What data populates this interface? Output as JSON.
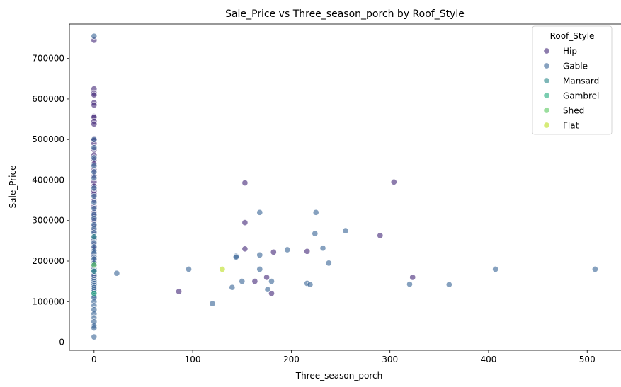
{
  "chart_data": {
    "type": "scatter",
    "title": "Sale_Price vs Three_season_porch by Roof_Style",
    "xlabel": "Three_season_porch",
    "ylabel": "Sale_Price",
    "xlim": [
      -25,
      535
    ],
    "ylim": [
      -20000,
      785000
    ],
    "xticks": [
      0,
      100,
      200,
      300,
      400,
      500
    ],
    "yticks": [
      0,
      100000,
      200000,
      300000,
      400000,
      500000,
      600000,
      700000
    ],
    "grid": false,
    "legend": {
      "title": "Roof_Style",
      "placement": "top-right"
    },
    "series": [
      {
        "name": "Hip",
        "color": "#472c7a",
        "points": [
          [
            0,
            745000
          ],
          [
            0,
            625000
          ],
          [
            0,
            615000
          ],
          [
            0,
            610000
          ],
          [
            0,
            591000
          ],
          [
            0,
            585000
          ],
          [
            0,
            557000
          ],
          [
            0,
            555000
          ],
          [
            0,
            545000
          ],
          [
            0,
            538000
          ],
          [
            0,
            502000
          ],
          [
            0,
            498000
          ],
          [
            0,
            490000
          ],
          [
            0,
            475000
          ],
          [
            0,
            462000
          ],
          [
            0,
            450000
          ],
          [
            0,
            440000
          ],
          [
            0,
            425000
          ],
          [
            0,
            410000
          ],
          [
            0,
            395000
          ],
          [
            0,
            385000
          ],
          [
            0,
            372000
          ],
          [
            0,
            365000
          ],
          [
            0,
            350000
          ],
          [
            0,
            335000
          ],
          [
            0,
            320000
          ],
          [
            0,
            310000
          ],
          [
            0,
            300000
          ],
          [
            0,
            285000
          ],
          [
            0,
            275000
          ],
          [
            0,
            260000
          ],
          [
            0,
            250000
          ],
          [
            0,
            240000
          ],
          [
            0,
            230000
          ],
          [
            0,
            215000
          ],
          [
            0,
            200000
          ],
          [
            0,
            185000
          ],
          [
            0,
            170000
          ],
          [
            0,
            160000
          ],
          [
            86,
            125000
          ],
          [
            153,
            393000
          ],
          [
            153,
            295000
          ],
          [
            153,
            230000
          ],
          [
            163,
            150000
          ],
          [
            175,
            160000
          ],
          [
            180,
            120000
          ],
          [
            182,
            222000
          ],
          [
            216,
            224000
          ],
          [
            290,
            263000
          ],
          [
            304,
            395000
          ],
          [
            323,
            160000
          ]
        ]
      },
      {
        "name": "Gable",
        "color": "#3b6797",
        "points": [
          [
            0,
            755000
          ],
          [
            0,
            500000
          ],
          [
            0,
            480000
          ],
          [
            0,
            455000
          ],
          [
            0,
            435000
          ],
          [
            0,
            420000
          ],
          [
            0,
            405000
          ],
          [
            0,
            380000
          ],
          [
            0,
            360000
          ],
          [
            0,
            345000
          ],
          [
            0,
            330000
          ],
          [
            0,
            315000
          ],
          [
            0,
            305000
          ],
          [
            0,
            290000
          ],
          [
            0,
            280000
          ],
          [
            0,
            270000
          ],
          [
            0,
            255000
          ],
          [
            0,
            245000
          ],
          [
            0,
            235000
          ],
          [
            0,
            225000
          ],
          [
            0,
            220000
          ],
          [
            0,
            210000
          ],
          [
            0,
            205000
          ],
          [
            0,
            195000
          ],
          [
            0,
            190000
          ],
          [
            0,
            180000
          ],
          [
            0,
            175000
          ],
          [
            0,
            165000
          ],
          [
            0,
            155000
          ],
          [
            0,
            150000
          ],
          [
            0,
            145000
          ],
          [
            0,
            140000
          ],
          [
            0,
            135000
          ],
          [
            0,
            130000
          ],
          [
            0,
            125000
          ],
          [
            0,
            120000
          ],
          [
            0,
            115000
          ],
          [
            0,
            110000
          ],
          [
            0,
            100000
          ],
          [
            0,
            90000
          ],
          [
            0,
            80000
          ],
          [
            0,
            70000
          ],
          [
            0,
            60000
          ],
          [
            0,
            50000
          ],
          [
            0,
            40000
          ],
          [
            0,
            35000
          ],
          [
            0,
            13000
          ],
          [
            23,
            170000
          ],
          [
            96,
            180000
          ],
          [
            120,
            95000
          ],
          [
            140,
            135000
          ],
          [
            144,
            212000
          ],
          [
            144,
            210000
          ],
          [
            150,
            150000
          ],
          [
            168,
            320000
          ],
          [
            168,
            215000
          ],
          [
            168,
            180000
          ],
          [
            176,
            130000
          ],
          [
            180,
            150000
          ],
          [
            196,
            228000
          ],
          [
            216,
            145000
          ],
          [
            219,
            142000
          ],
          [
            224,
            268000
          ],
          [
            225,
            320000
          ],
          [
            232,
            232000
          ],
          [
            238,
            195000
          ],
          [
            255,
            275000
          ],
          [
            320,
            143000
          ],
          [
            360,
            142000
          ],
          [
            407,
            180000
          ],
          [
            508,
            180000
          ]
        ]
      },
      {
        "name": "Mansard",
        "color": "#2e8a8c",
        "points": [
          [
            0,
            175000
          ],
          [
            0,
            260000
          ]
        ]
      },
      {
        "name": "Gambrel",
        "color": "#29ae80",
        "points": [
          [
            0,
            120000
          ]
        ]
      },
      {
        "name": "Shed",
        "color": "#5ec962",
        "points": [
          [
            0,
            190000
          ]
        ]
      },
      {
        "name": "Flat",
        "color": "#bddf26",
        "points": [
          [
            130,
            180000
          ]
        ]
      }
    ]
  }
}
